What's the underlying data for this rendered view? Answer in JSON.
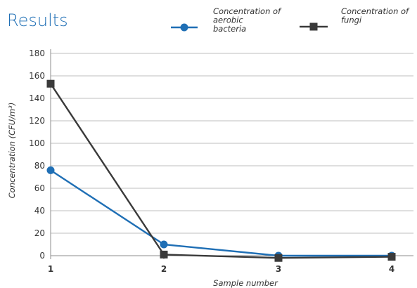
{
  "chart_data": {
    "type": "line",
    "title": "Results",
    "xlabel": "Sample number",
    "ylabel": "Concentration (CFU/m³)",
    "x": [
      1,
      2,
      3,
      4
    ],
    "x_tick_labels": [
      "1",
      "2",
      "3",
      "4"
    ],
    "ylim": [
      0,
      180
    ],
    "y_ticks": [
      0,
      20,
      40,
      60,
      80,
      100,
      120,
      140,
      160,
      180
    ],
    "grid": true,
    "legend_position": "top-right",
    "series": [
      {
        "name": "Concentration of aerobic bacteria",
        "legend_lines": [
          "Concentration of",
          "aerobic",
          "bacteria"
        ],
        "values": [
          76,
          10,
          0,
          0
        ],
        "color": "#1f6fb5",
        "marker": "circle"
      },
      {
        "name": "Concentration of fungi",
        "legend_lines": [
          "Concentration of",
          "fungi"
        ],
        "values": [
          153,
          1,
          -2,
          -1
        ],
        "color": "#3a3a3a",
        "marker": "square"
      }
    ],
    "colors": {
      "title": "#1f6fb5",
      "text": "#333333",
      "grid": "#bfbfbf",
      "axis": "#8c8c8c"
    }
  }
}
